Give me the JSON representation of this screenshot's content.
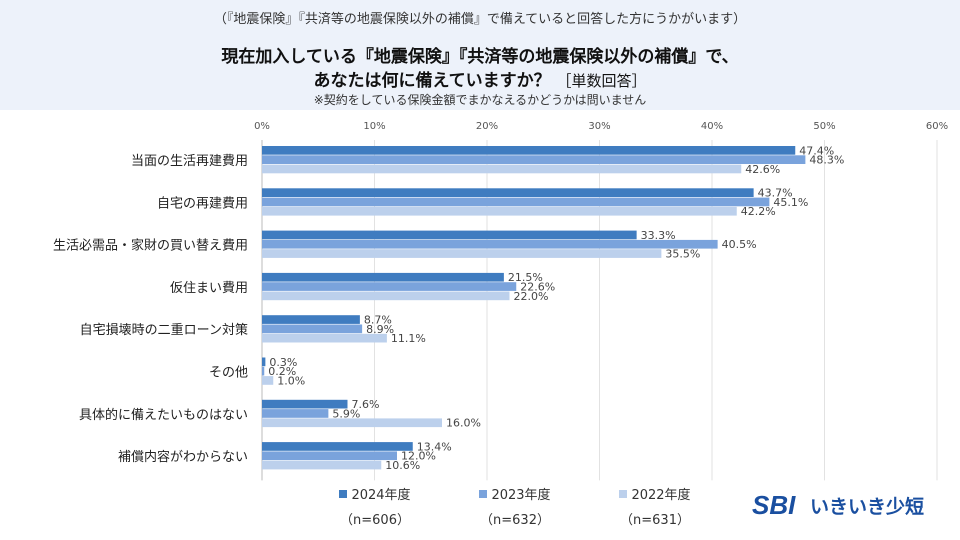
{
  "header": {
    "pretext": "（『地震保険』『共済等の地震保険以外の補償』で備えていると回答した方にうかがいます）",
    "title_line1": "現在加入している『地震保険』『共済等の地震保険以外の補償』で、",
    "title_line2": "あなたは何に備えていますか？",
    "title_tag": "［単数回答］",
    "note": "※契約をしている保険金額でまかなえるかどうかは問いません"
  },
  "legend": [
    {
      "label": "2024年度",
      "n": "（n=606）",
      "color": "#3f7cc0"
    },
    {
      "label": "2023年度",
      "n": "（n=632）",
      "color": "#7aa3dc"
    },
    {
      "label": "2022年度",
      "n": "（n=631）",
      "color": "#bcd0ec"
    }
  ],
  "logo": {
    "brand": "SBI",
    "name": "いきいき少短",
    "color": "#1a4fa0"
  },
  "chart_data": {
    "type": "bar",
    "orientation": "horizontal",
    "xlim": [
      0,
      60
    ],
    "xticks": [
      "0%",
      "10%",
      "20%",
      "30%",
      "40%",
      "50%",
      "60%"
    ],
    "grid": true,
    "categories": [
      "当面の生活再建費用",
      "自宅の再建費用",
      "生活必需品・家財の買い替え費用",
      "仮住まい費用",
      "自宅損壊時の二重ローン対策",
      "その他",
      "具体的に備えたいものはない",
      "補償内容がわからない"
    ],
    "series": [
      {
        "name": "2024年度",
        "color": "#3f7cc0",
        "values": [
          47.4,
          43.7,
          33.3,
          21.5,
          8.7,
          0.3,
          7.6,
          13.4
        ]
      },
      {
        "name": "2023年度",
        "color": "#7aa3dc",
        "values": [
          48.3,
          45.1,
          40.5,
          22.6,
          8.9,
          0.2,
          5.9,
          12.0
        ]
      },
      {
        "name": "2022年度",
        "color": "#bcd0ec",
        "values": [
          42.6,
          42.2,
          35.5,
          22.0,
          11.1,
          1.0,
          16.0,
          10.6
        ]
      }
    ]
  }
}
